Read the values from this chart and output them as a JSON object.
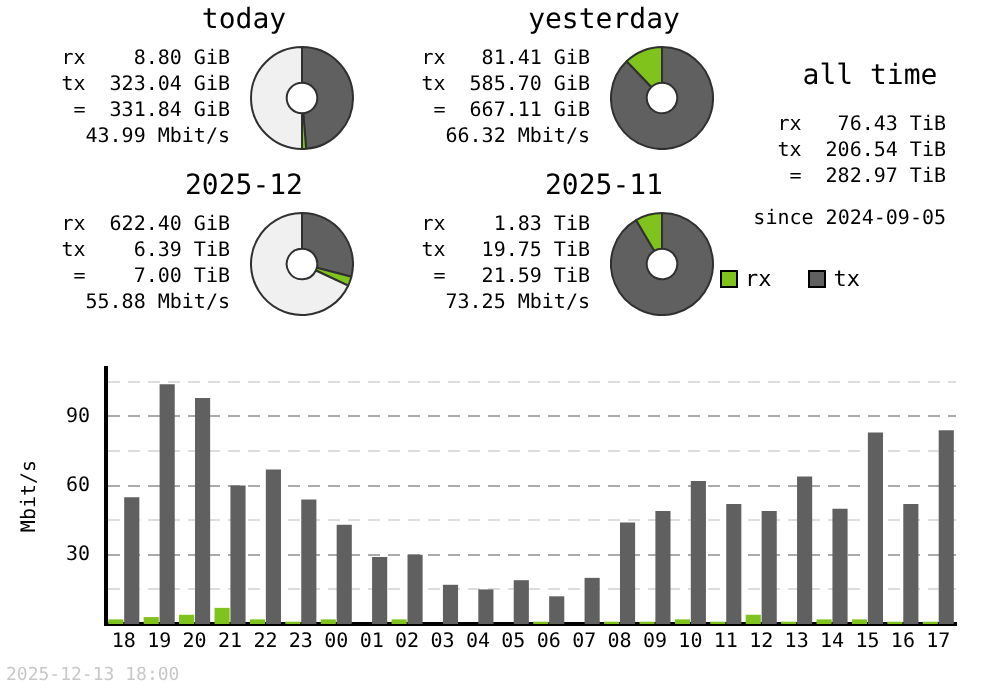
{
  "chart_data": [
    {
      "type": "donut",
      "title": "today",
      "categories": [
        null,
        null,
        null
      ],
      "values": [
        48.7,
        1.3,
        50
      ],
      "colors": [
        "#606060",
        "#7fc31c",
        "#f0f0f0"
      ],
      "annotations": [
        "rx    8.80 GiB",
        "tx  323.04 GiB",
        "=  331.84 GiB",
        "43.99 Mbit/s"
      ]
    },
    {
      "type": "donut",
      "title": "yesterday",
      "categories": [
        null,
        null,
        null
      ],
      "values": [
        87.8,
        12.2,
        0
      ],
      "colors": [
        "#606060",
        "#7fc31c",
        "#f0f0f0"
      ],
      "annotations": [
        "rx   81.41 GiB",
        "tx  585.70 GiB",
        "=  667.11 GiB",
        "66.32 Mbit/s"
      ]
    },
    {
      "type": "other",
      "title": "all time",
      "annotations": [
        "rx   76.43 TiB",
        "tx  206.54 TiB",
        "=  282.97 TiB",
        "since 2024-09-05"
      ]
    },
    {
      "type": "donut",
      "title": "2025-12",
      "categories": [
        null,
        null,
        null
      ],
      "values": [
        29,
        3,
        68
      ],
      "colors": [
        "#606060",
        "#7fc31c",
        "#f0f0f0"
      ],
      "annotations": [
        "rx  622.40 GiB",
        "tx    6.39 TiB",
        "=    7.00 TiB",
        "55.88 Mbit/s"
      ]
    },
    {
      "type": "donut",
      "title": "2025-11",
      "categories": [
        null,
        null,
        null
      ],
      "values": [
        91.5,
        8.5,
        0
      ],
      "colors": [
        "#606060",
        "#7fc31c",
        "#f0f0f0"
      ],
      "annotations": [
        "rx    1.83 TiB",
        "tx   19.75 TiB",
        "=   21.59 TiB",
        "73.25 Mbit/s"
      ]
    },
    {
      "type": "bar",
      "ylabel": "Mbit/s",
      "categories": [
        "18",
        "19",
        "20",
        "21",
        "22",
        "23",
        "00",
        "01",
        "02",
        "03",
        "04",
        "05",
        "06",
        "07",
        "08",
        "09",
        "10",
        "11",
        "12",
        "13",
        "14",
        "15",
        "16",
        "17"
      ],
      "series": [
        {
          "name": "rx",
          "color": "#7fc31c",
          "values": [
            2,
            3,
            4,
            7,
            2,
            1,
            2,
            0,
            2,
            0,
            0,
            0,
            1,
            0,
            1,
            1,
            2,
            1,
            4,
            1,
            2,
            2,
            1,
            1
          ]
        },
        {
          "name": "tx",
          "color": "#606060",
          "values": [
            55,
            104,
            98,
            60,
            67,
            54,
            43,
            29,
            30,
            17,
            15,
            19,
            12,
            20,
            44,
            49,
            62,
            52,
            49,
            64,
            50,
            83,
            52,
            84
          ]
        }
      ],
      "ylim": [
        0,
        111
      ],
      "yticks": [
        {
          "value": 15,
          "label": null
        },
        30,
        {
          "value": 45,
          "label": null
        },
        60,
        {
          "value": 75,
          "label": null
        },
        90,
        {
          "value": 105,
          "label": null
        }
      ],
      "grid": "y",
      "legend": "top right",
      "annotations": [
        "2025-12-13 18:00"
      ]
    }
  ]
}
